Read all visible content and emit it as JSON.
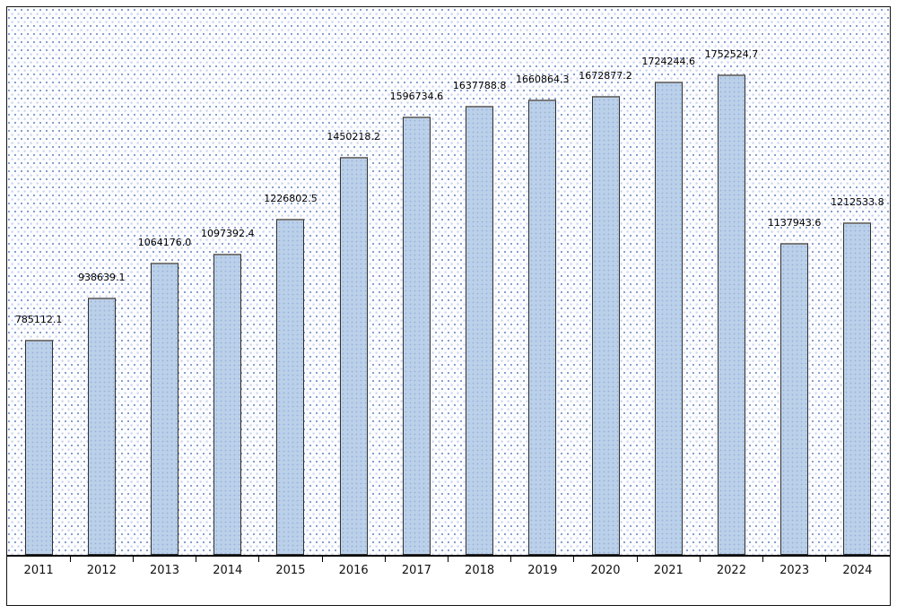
{
  "window": {
    "background_color": "#ffffff",
    "frame_border_color": "#141414"
  },
  "chart_data": {
    "type": "bar",
    "title": "",
    "xlabel": "",
    "ylabel": "",
    "categories": [
      "2011",
      "2012",
      "2013",
      "2014",
      "2015",
      "2016",
      "2017",
      "2018",
      "2019",
      "2020",
      "2021",
      "2022",
      "2023",
      "2024"
    ],
    "values": [
      785112.1,
      938639.1,
      1064176.0,
      1097392.4,
      1226802.5,
      1450218.2,
      1596734.6,
      1637788.8,
      1660864.3,
      1672877.2,
      1724244.6,
      1752524.7,
      1137943.6,
      1212533.8
    ],
    "value_labels": [
      "785112.1",
      "938639.1",
      "1064176.0",
      "1097392.4",
      "1226802.5",
      "1450218.2",
      "1596734.6",
      "1637788.8",
      "1660864.3",
      "1672877.2",
      "1724244.6",
      "1752524.7",
      "1137943.6",
      "1212533.8"
    ],
    "ylim": [
      0,
      2000000
    ],
    "legend_position": "none",
    "grid": "none",
    "plot_background": "dotted-halftone",
    "colors": {
      "bar_fill": "#bbd0e9",
      "bar_border": "#2f2f2f",
      "bar_top_edge": "#7a7a7a",
      "axis_line": "#000000",
      "value_label_text": "#000000",
      "year_label_text": "#111111",
      "background_dot_dark": "#6e8cc8",
      "background_dot_light": "#c9d4ec"
    }
  }
}
